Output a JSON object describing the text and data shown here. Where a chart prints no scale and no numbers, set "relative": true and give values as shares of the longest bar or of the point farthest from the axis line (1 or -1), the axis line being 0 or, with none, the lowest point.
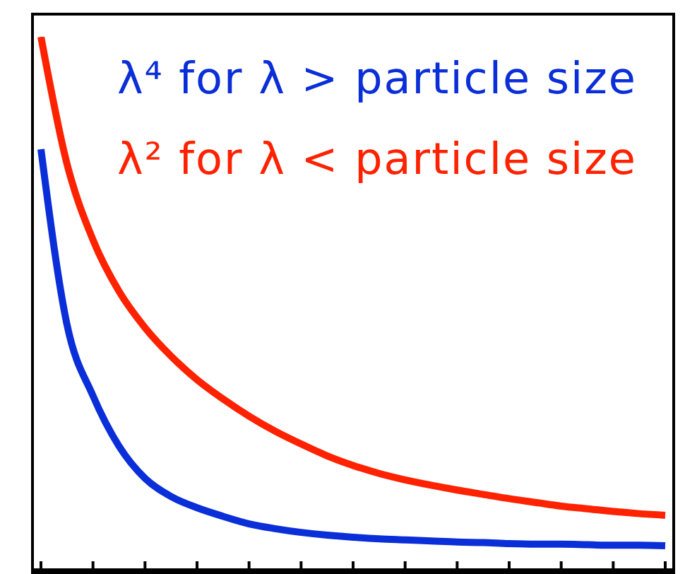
{
  "chart_data": {
    "type": "line",
    "relative": true,
    "legend": "top right",
    "marker": "none",
    "line_style": "solid",
    "categories": [
      null,
      null,
      null,
      null,
      null,
      null,
      null,
      null,
      null,
      null,
      null,
      null,
      null,
      null,
      null,
      null,
      null,
      null,
      null,
      null,
      null,
      null,
      null,
      null,
      null
    ],
    "series": [
      {
        "name": "λ⁴ for λ > particle size",
        "color": "#0a2ed8",
        "values": [
          0.79,
          0.463,
          0.33,
          0.236,
          0.176,
          0.142,
          0.121,
          0.105,
          0.091,
          0.082,
          0.075,
          0.07,
          0.066,
          0.063,
          0.061,
          0.059,
          0.057,
          0.056,
          0.054,
          0.053,
          0.053,
          0.052,
          0.051,
          0.051,
          0.05
        ]
      },
      {
        "name": "λ² for λ < particle size",
        "color": "#ff2200",
        "values": [
          1,
          0.763,
          0.621,
          0.525,
          0.457,
          0.404,
          0.36,
          0.324,
          0.292,
          0.264,
          0.24,
          0.218,
          0.2,
          0.185,
          0.173,
          0.163,
          0.154,
          0.146,
          0.138,
          0.131,
          0.124,
          0.119,
          0.114,
          0.11,
          0.107
        ]
      }
    ]
  }
}
